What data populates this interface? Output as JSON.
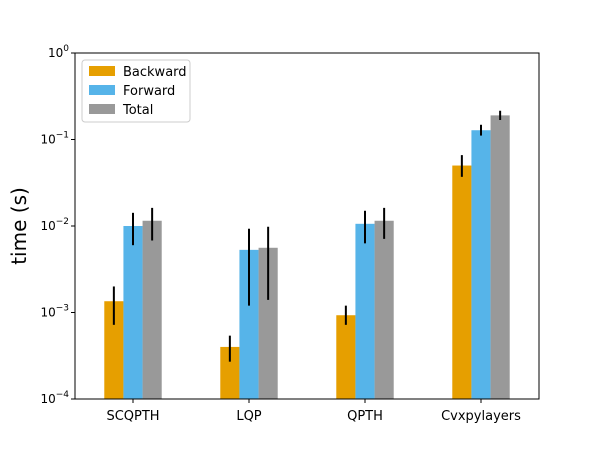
{
  "chart_data": {
    "type": "bar",
    "title": "",
    "xlabel": "",
    "ylabel": "time (s)",
    "yscale": "log",
    "ylim": [
      0.0001,
      1
    ],
    "y_ticks": [
      {
        "value": 0.0001,
        "base": "10",
        "exp": "−4"
      },
      {
        "value": 0.001,
        "base": "10",
        "exp": "−3"
      },
      {
        "value": 0.01,
        "base": "10",
        "exp": "−2"
      },
      {
        "value": 0.1,
        "base": "10",
        "exp": "−1"
      },
      {
        "value": 1,
        "base": "10",
        "exp": "0"
      }
    ],
    "categories": [
      "SCQPTH",
      "LQP",
      "QPTH",
      "Cvxpylayers"
    ],
    "series": [
      {
        "name": "Backward",
        "color": "#E69F00",
        "values": [
          0.00135,
          0.0004,
          0.00093,
          0.05
        ],
        "err_low": [
          0.00072,
          0.00027,
          0.00072,
          0.037
        ],
        "err_high": [
          0.002,
          0.00054,
          0.0012,
          0.066
        ]
      },
      {
        "name": "Forward",
        "color": "#56B4E9",
        "values": [
          0.01,
          0.0053,
          0.0106,
          0.128
        ],
        "err_low": [
          0.006,
          0.0012,
          0.0063,
          0.111
        ],
        "err_high": [
          0.0142,
          0.0093,
          0.015,
          0.148
        ]
      },
      {
        "name": "Total",
        "color": "#999999",
        "values": [
          0.0115,
          0.0056,
          0.0115,
          0.19
        ],
        "err_low": [
          0.0068,
          0.0014,
          0.0071,
          0.168
        ],
        "err_high": [
          0.0162,
          0.0098,
          0.0162,
          0.215
        ]
      }
    ],
    "legend_position": "top-left",
    "grid": false
  }
}
